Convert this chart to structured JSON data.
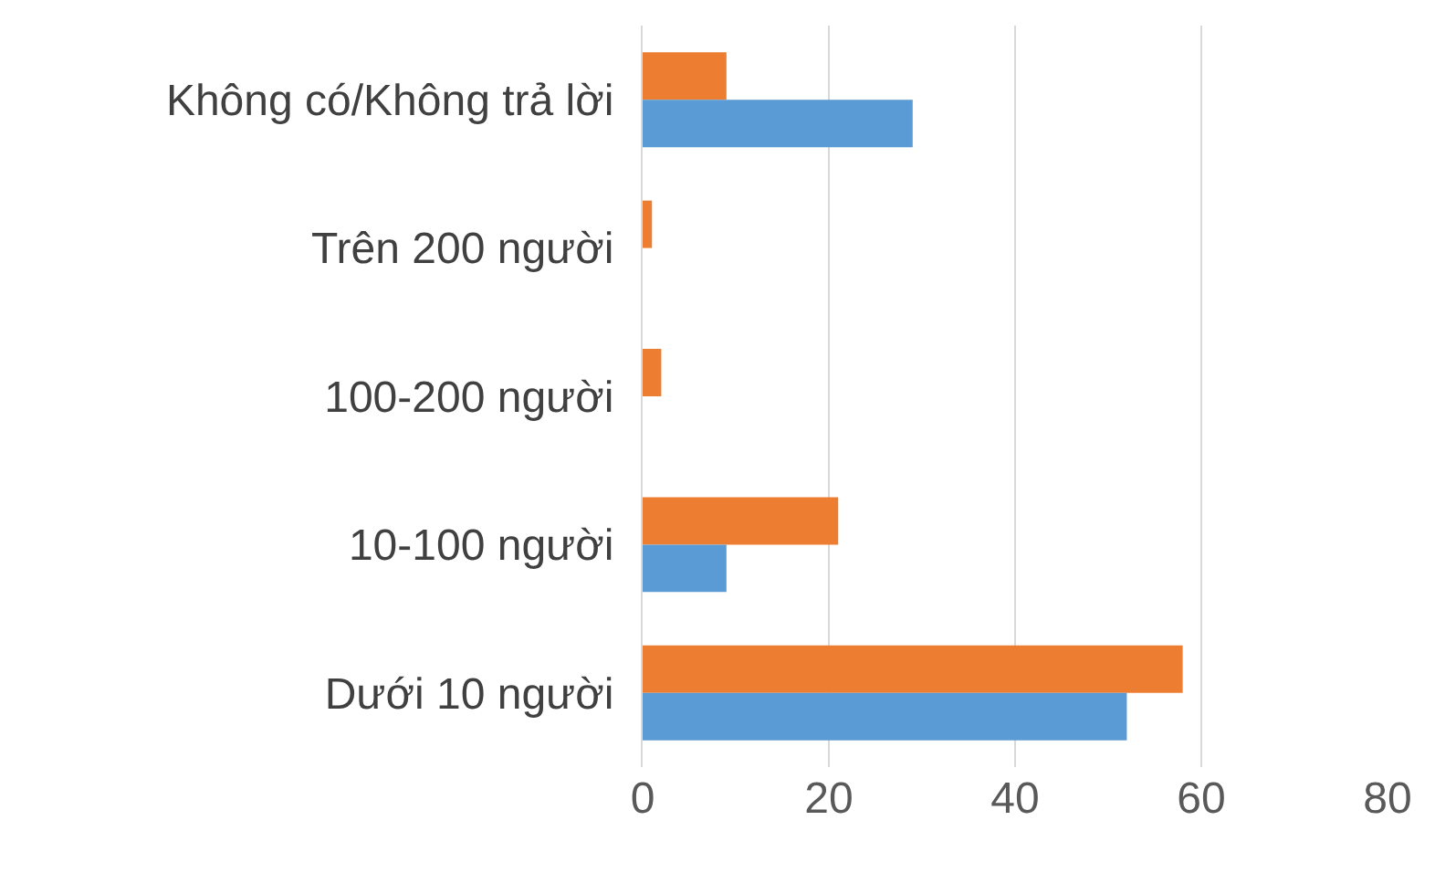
{
  "chart_data": {
    "type": "bar",
    "orientation": "horizontal",
    "categories": [
      "Không có/Không trả lời",
      "Trên 200 người",
      "100-200 người",
      "10-100 người",
      "Dưới 10 người"
    ],
    "series": [
      {
        "color": "#ed7d31",
        "values": [
          9,
          1,
          2,
          21,
          58
        ]
      },
      {
        "color": "#5b9bd5",
        "values": [
          29,
          0,
          0,
          9,
          52
        ]
      }
    ],
    "xlim": [
      0,
      80
    ],
    "xticks": [
      0,
      20,
      40,
      60,
      80
    ],
    "grid": "x",
    "legend": false
  }
}
